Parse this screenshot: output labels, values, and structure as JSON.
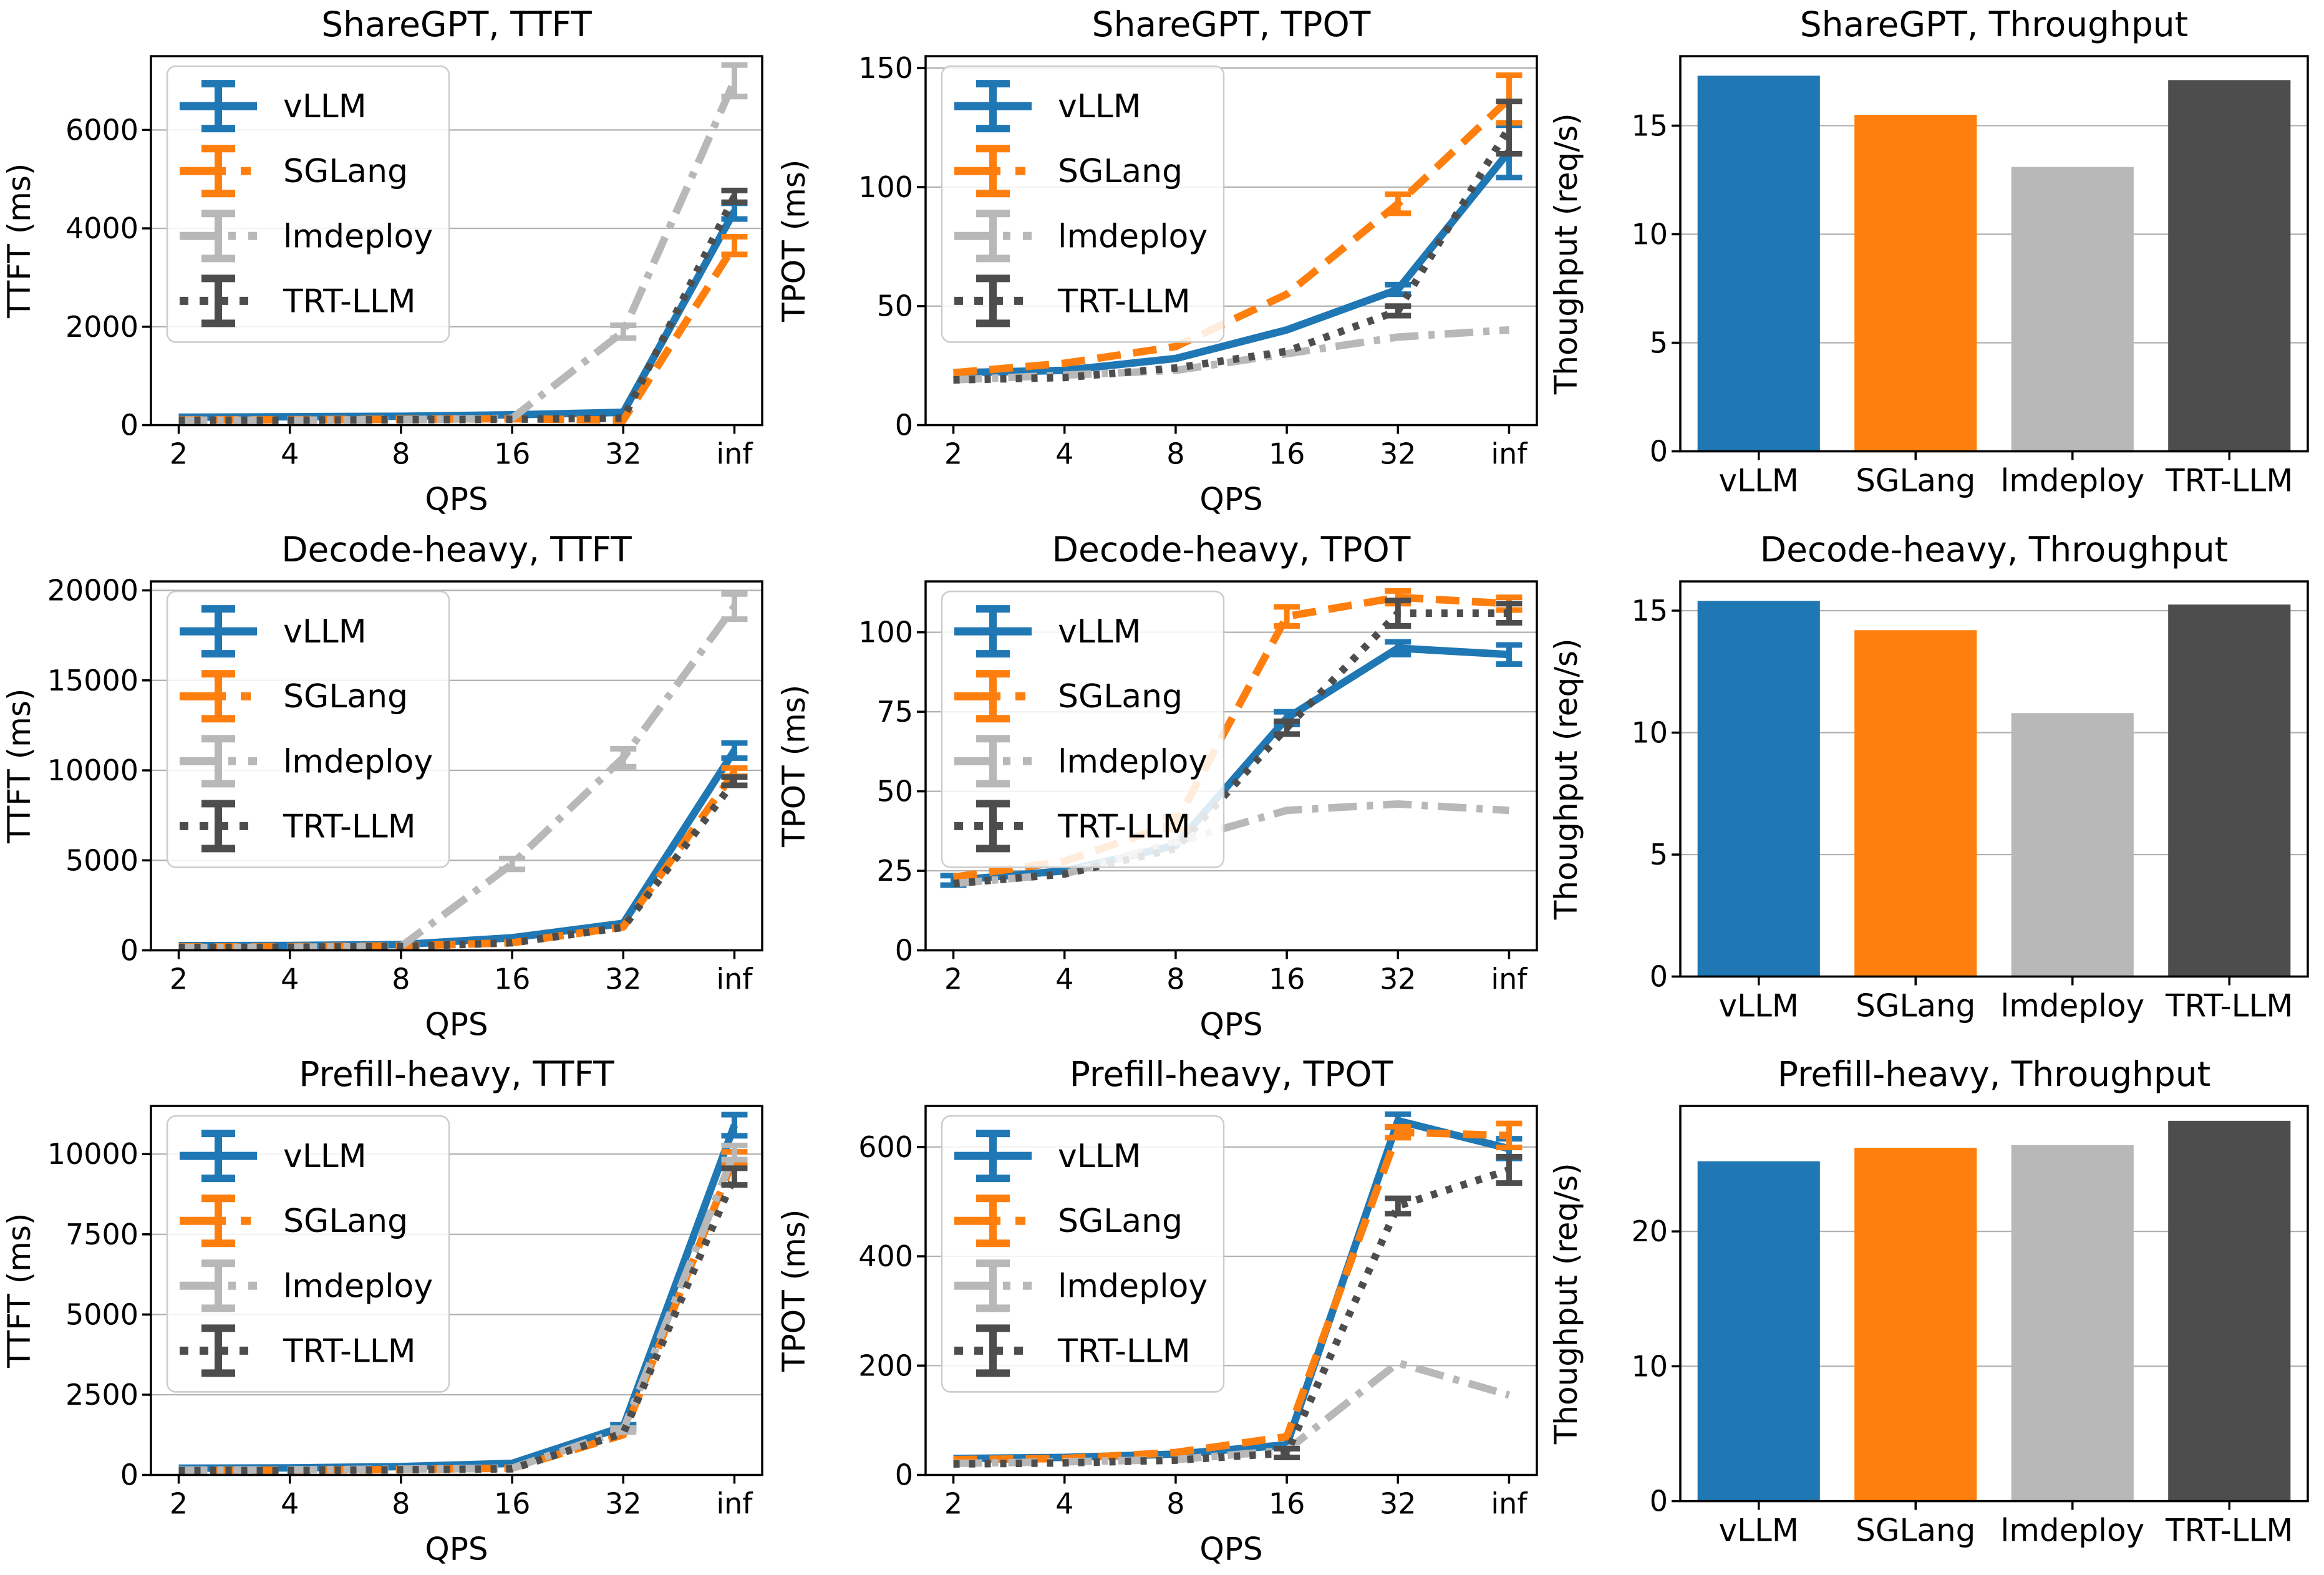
{
  "figure": {
    "background": "#ffffff",
    "grid_color": "#b0b0b0",
    "spine_color": "#000000",
    "series_styles": [
      {
        "name": "vLLM",
        "color": "#1f77b4",
        "dash": "solid"
      },
      {
        "name": "SGLang",
        "color": "#ff7f0e",
        "dash": "dashed"
      },
      {
        "name": "lmdeploy",
        "color": "#b8b8b8",
        "dash": "dashdot"
      },
      {
        "name": "TRT-LLM",
        "color": "#4d4d4d",
        "dash": "dotted"
      }
    ]
  },
  "chart_data": [
    {
      "type": "line",
      "title": "ShareGPT, TTFT",
      "xlabel": "QPS",
      "ylabel": "TTFT (ms)",
      "x_ticklabels": [
        "2",
        "4",
        "8",
        "16",
        "32",
        "inf"
      ],
      "yticks": [
        0,
        2000,
        4000,
        6000
      ],
      "ylim": [
        0,
        7500
      ],
      "grid": "horizontal",
      "legend": "upper left",
      "series": [
        {
          "name": "vLLM",
          "values": [
            160,
            170,
            180,
            210,
            260,
            4350
          ],
          "errors": [
            0,
            0,
            0,
            0,
            0,
            160
          ]
        },
        {
          "name": "SGLang",
          "values": [
            110,
            110,
            120,
            130,
            100,
            3650
          ],
          "errors": [
            0,
            0,
            0,
            0,
            0,
            180
          ]
        },
        {
          "name": "lmdeploy",
          "values": [
            100,
            100,
            110,
            140,
            1900,
            7000
          ],
          "errors": [
            0,
            0,
            0,
            0,
            130,
            320
          ]
        },
        {
          "name": "TRT-LLM",
          "values": [
            100,
            100,
            110,
            120,
            140,
            4650
          ],
          "errors": [
            0,
            0,
            0,
            0,
            0,
            120
          ]
        }
      ]
    },
    {
      "type": "line",
      "title": "ShareGPT, TPOT",
      "xlabel": "QPS",
      "ylabel": "TPOT (ms)",
      "x_ticklabels": [
        "2",
        "4",
        "8",
        "16",
        "32",
        "inf"
      ],
      "yticks": [
        0,
        50,
        100,
        150
      ],
      "ylim": [
        0,
        155
      ],
      "grid": "horizontal",
      "legend": "upper left",
      "series": [
        {
          "name": "vLLM",
          "values": [
            22,
            23,
            28,
            40,
            57,
            115
          ],
          "errors": [
            0,
            0,
            0,
            0,
            2,
            11
          ]
        },
        {
          "name": "SGLang",
          "values": [
            22,
            26,
            33,
            55,
            93,
            137
          ],
          "errors": [
            0,
            0,
            0,
            0,
            4,
            10
          ]
        },
        {
          "name": "lmdeploy",
          "values": [
            19,
            21,
            23,
            30,
            37,
            40
          ],
          "errors": [
            0,
            0,
            0,
            0,
            0,
            0
          ]
        },
        {
          "name": "TRT-LLM",
          "values": [
            19,
            20,
            24,
            31,
            48,
            125
          ],
          "errors": [
            0,
            0,
            0,
            0,
            2,
            11
          ]
        }
      ]
    },
    {
      "type": "bar",
      "title": "ShareGPT, Throughput",
      "xlabel": "",
      "ylabel": "Thoughput (req/s)",
      "categories": [
        "vLLM",
        "SGLang",
        "lmdeploy",
        "TRT-LLM"
      ],
      "values": [
        17.3,
        15.5,
        13.1,
        17.1
      ],
      "yticks": [
        0,
        5,
        10,
        15
      ],
      "ylim": [
        0,
        18.2
      ],
      "grid": "horizontal"
    },
    {
      "type": "line",
      "title": "Decode-heavy, TTFT",
      "xlabel": "QPS",
      "ylabel": "TTFT (ms)",
      "x_ticklabels": [
        "2",
        "4",
        "8",
        "16",
        "32",
        "inf"
      ],
      "yticks": [
        0,
        5000,
        10000,
        15000,
        20000
      ],
      "ylim": [
        0,
        20500
      ],
      "grid": "horizontal",
      "legend": "upper left",
      "series": [
        {
          "name": "vLLM",
          "values": [
            260,
            270,
            320,
            700,
            1500,
            11100
          ],
          "errors": [
            0,
            0,
            0,
            0,
            0,
            420
          ]
        },
        {
          "name": "SGLang",
          "values": [
            190,
            200,
            240,
            420,
            1300,
            9900
          ],
          "errors": [
            0,
            0,
            0,
            0,
            0,
            230
          ]
        },
        {
          "name": "lmdeploy",
          "values": [
            160,
            170,
            220,
            4800,
            10700,
            19100
          ],
          "errors": [
            0,
            0,
            0,
            300,
            500,
            700
          ]
        },
        {
          "name": "TRT-LLM",
          "values": [
            160,
            170,
            210,
            420,
            1280,
            9400
          ],
          "errors": [
            0,
            0,
            0,
            0,
            0,
            230
          ]
        }
      ]
    },
    {
      "type": "line",
      "title": "Decode-heavy, TPOT",
      "xlabel": "QPS",
      "ylabel": "TPOT (ms)",
      "x_ticklabels": [
        "2",
        "4",
        "8",
        "16",
        "32",
        "inf"
      ],
      "yticks": [
        0,
        25,
        50,
        75,
        100
      ],
      "ylim": [
        0,
        116
      ],
      "grid": "horizontal",
      "legend": "upper left",
      "series": [
        {
          "name": "vLLM",
          "values": [
            22,
            25,
            33,
            73,
            95,
            93
          ],
          "errors": [
            1.5,
            0,
            0,
            2,
            2,
            3
          ]
        },
        {
          "name": "SGLang",
          "values": [
            23,
            28,
            40,
            105,
            111,
            109
          ],
          "errors": [
            0,
            0,
            2,
            3,
            2,
            2
          ]
        },
        {
          "name": "lmdeploy",
          "values": [
            21,
            24,
            34,
            44,
            46,
            44
          ],
          "errors": [
            0,
            0,
            0,
            0,
            0,
            0
          ]
        },
        {
          "name": "TRT-LLM",
          "values": [
            21,
            24,
            32,
            70,
            106,
            106
          ],
          "errors": [
            0,
            0,
            0,
            2,
            4,
            3
          ]
        }
      ]
    },
    {
      "type": "bar",
      "title": "Decode-heavy, Throughput",
      "xlabel": "",
      "ylabel": "Thoughput (req/s)",
      "categories": [
        "vLLM",
        "SGLang",
        "lmdeploy",
        "TRT-LLM"
      ],
      "values": [
        15.4,
        14.2,
        10.8,
        15.25
      ],
      "yticks": [
        0,
        5,
        10,
        15
      ],
      "ylim": [
        0,
        16.2
      ],
      "grid": "horizontal"
    },
    {
      "type": "line",
      "title": "Prefill-heavy, TTFT",
      "xlabel": "QPS",
      "ylabel": "TTFT (ms)",
      "x_ticklabels": [
        "2",
        "4",
        "8",
        "16",
        "32",
        "inf"
      ],
      "yticks": [
        0,
        2500,
        5000,
        7500,
        10000
      ],
      "ylim": [
        0,
        11500
      ],
      "grid": "horizontal",
      "legend": "upper left",
      "series": [
        {
          "name": "vLLM",
          "values": [
            210,
            220,
            260,
            360,
            1500,
            10900
          ],
          "errors": [
            0,
            0,
            0,
            0,
            60,
            330
          ]
        },
        {
          "name": "SGLang",
          "values": [
            140,
            150,
            170,
            210,
            1250,
            9900
          ],
          "errors": [
            0,
            0,
            0,
            0,
            0,
            170
          ]
        },
        {
          "name": "lmdeploy",
          "values": [
            150,
            160,
            180,
            210,
            1400,
            10050
          ],
          "errors": [
            0,
            0,
            0,
            0,
            60,
            220
          ]
        },
        {
          "name": "TRT-LLM",
          "values": [
            130,
            140,
            160,
            190,
            1300,
            9300
          ],
          "errors": [
            0,
            0,
            0,
            0,
            0,
            260
          ]
        }
      ]
    },
    {
      "type": "line",
      "title": "Prefill-heavy, TPOT",
      "xlabel": "QPS",
      "ylabel": "TPOT (ms)",
      "x_ticklabels": [
        "2",
        "4",
        "8",
        "16",
        "32",
        "inf"
      ],
      "yticks": [
        0,
        200,
        400,
        600
      ],
      "ylim": [
        0,
        675
      ],
      "grid": "horizontal",
      "legend": "upper left",
      "series": [
        {
          "name": "vLLM",
          "values": [
            30,
            32,
            38,
            55,
            648,
            597
          ],
          "errors": [
            0,
            0,
            0,
            0,
            12,
            18
          ]
        },
        {
          "name": "SGLang",
          "values": [
            28,
            30,
            41,
            70,
            627,
            621
          ],
          "errors": [
            0,
            0,
            0,
            0,
            10,
            22
          ]
        },
        {
          "name": "lmdeploy",
          "values": [
            21,
            24,
            28,
            45,
            205,
            146
          ],
          "errors": [
            0,
            0,
            0,
            0,
            0,
            0
          ]
        },
        {
          "name": "TRT-LLM",
          "values": [
            20,
            22,
            27,
            40,
            492,
            558
          ],
          "errors": [
            0,
            0,
            0,
            8,
            14,
            24
          ]
        }
      ]
    },
    {
      "type": "bar",
      "title": "Prefill-heavy, Throughput",
      "xlabel": "",
      "ylabel": "Thoughput (req/s)",
      "categories": [
        "vLLM",
        "SGLang",
        "lmdeploy",
        "TRT-LLM"
      ],
      "values": [
        25.2,
        26.2,
        26.4,
        28.2
      ],
      "yticks": [
        0,
        10,
        20
      ],
      "ylim": [
        0,
        29.3
      ],
      "grid": "horizontal"
    }
  ]
}
